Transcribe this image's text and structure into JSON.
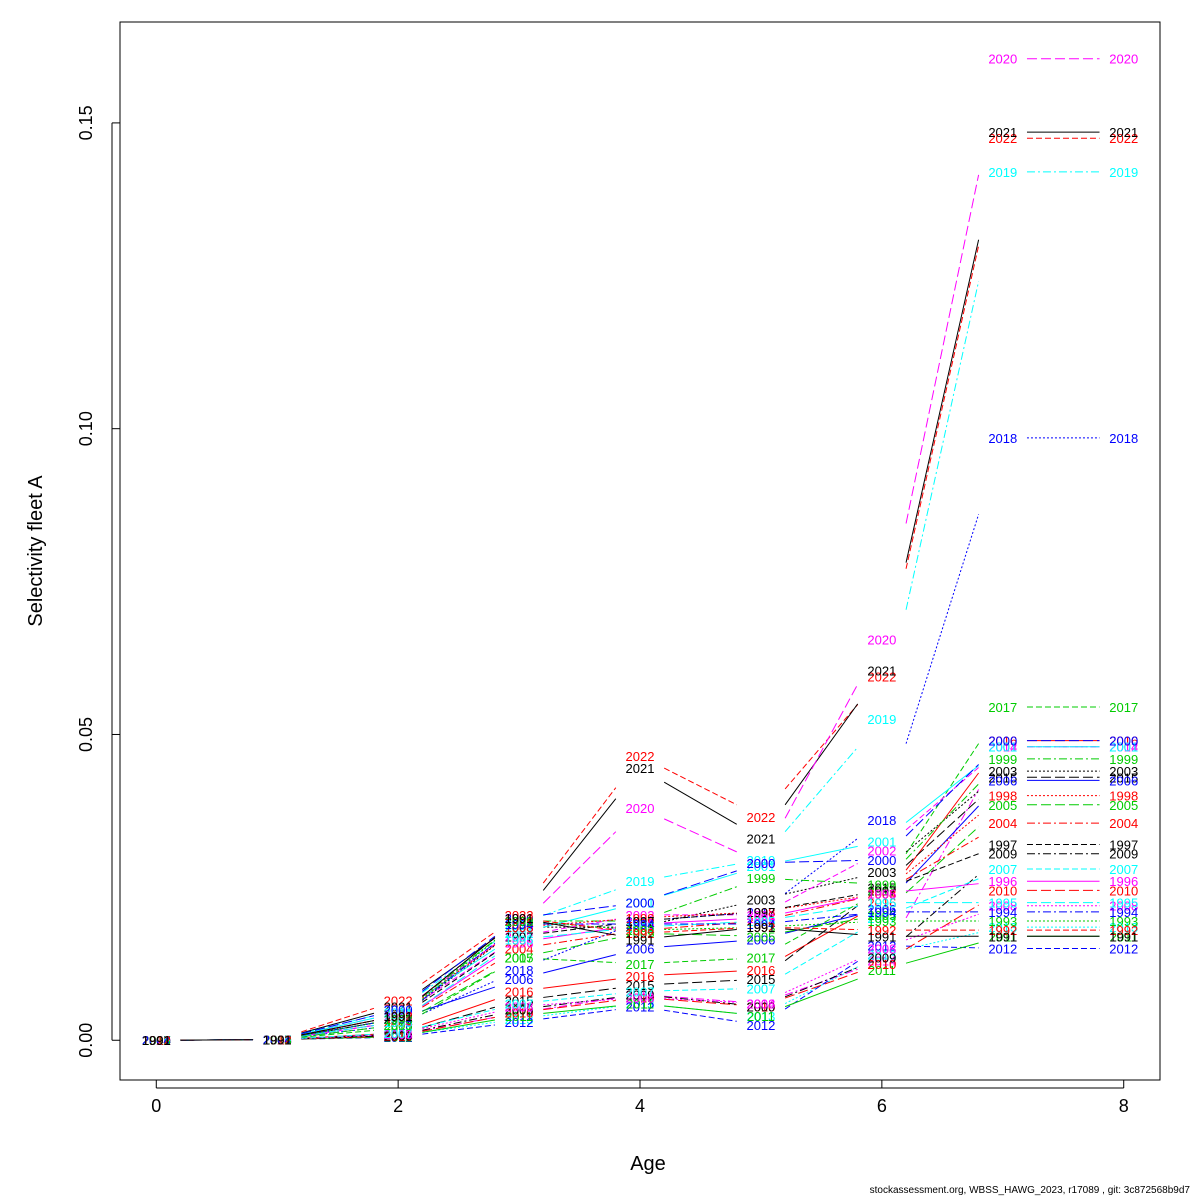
{
  "chart_data": {
    "type": "line",
    "xlabel": "Age",
    "ylabel": "Selectivity fleet A",
    "xlim": [
      -0.3,
      8.3
    ],
    "ylim": [
      -0.0065,
      0.1665
    ],
    "x_ticks": [
      "0",
      "2",
      "4",
      "6",
      "8"
    ],
    "y_ticks": [
      "0.00",
      "0.05",
      "0.10",
      "0.15"
    ],
    "grid": false,
    "legend": "none (series labelled inline at each point)",
    "x": [
      0,
      1,
      2,
      3,
      4,
      5,
      6,
      7,
      8
    ],
    "series": [
      {
        "name": "2022",
        "color": "#ff0000",
        "dash": "6,3",
        "values": [
          0,
          0.0001,
          0.0065,
          0.0205,
          0.0465,
          0.0365,
          0.0595,
          0.1475,
          0.1475
        ]
      },
      {
        "name": "2021",
        "color": "#000000",
        "dash": "",
        "values": [
          0,
          0.0001,
          0.0055,
          0.0195,
          0.0445,
          0.033,
          0.0605,
          0.1485,
          0.1485
        ]
      },
      {
        "name": "2020",
        "color": "#ff00ff",
        "dash": "10,4",
        "values": [
          0,
          0.0001,
          0.0045,
          0.0185,
          0.038,
          0.029,
          0.0655,
          0.1605,
          0.1605
        ]
      },
      {
        "name": "2019",
        "color": "#00ffff",
        "dash": "8,3,2,3",
        "values": [
          0,
          0.0001,
          0.005,
          0.019,
          0.026,
          0.0295,
          0.0525,
          0.142,
          0.142
        ]
      },
      {
        "name": "2018",
        "color": "#0000ff",
        "dash": "2,2",
        "values": [
          0,
          0.0001,
          0.0025,
          0.0115,
          0.0195,
          0.021,
          0.036,
          0.0985,
          0.0985
        ]
      },
      {
        "name": "2017",
        "color": "#00cc00",
        "dash": "6,3",
        "values": [
          0,
          0.0001,
          0.002,
          0.0135,
          0.0125,
          0.0135,
          0.0245,
          0.0545,
          0.0545
        ]
      },
      {
        "name": "2016",
        "color": "#ff0000",
        "dash": "",
        "values": [
          0,
          0.0001,
          0.0012,
          0.008,
          0.0105,
          0.0115,
          0.0225,
          0.049,
          0.049
        ]
      },
      {
        "name": "2015",
        "color": "#000000",
        "dash": "10,4",
        "values": [
          0,
          0.0001,
          0.001,
          0.0065,
          0.009,
          0.01,
          0.025,
          0.043,
          0.043
        ]
      },
      {
        "name": "2014",
        "color": "#ff00ff",
        "dash": "8,3,2,3",
        "values": [
          0,
          0.0001,
          0.0008,
          0.0045,
          0.0075,
          0.006,
          0.013,
          0.048,
          0.048
        ]
      },
      {
        "name": "2013",
        "color": "#00ffff",
        "dash": "2,2",
        "values": [
          0,
          0.0001,
          0.0007,
          0.0035,
          0.006,
          0.004,
          0.014,
          0.0185,
          0.0185
        ]
      },
      {
        "name": "2012",
        "color": "#0000ff",
        "dash": "6,3",
        "values": [
          0,
          0.0001,
          0.0005,
          0.003,
          0.0055,
          0.0025,
          0.0155,
          0.015,
          0.015
        ]
      },
      {
        "name": "2011",
        "color": "#00cc00",
        "dash": "",
        "values": [
          0,
          0.0001,
          0.0006,
          0.004,
          0.006,
          0.004,
          0.0115,
          0.017,
          0.017
        ]
      },
      {
        "name": "2010",
        "color": "#ff0000",
        "dash": "10,4",
        "values": [
          0,
          0.0001,
          0.0007,
          0.0045,
          0.007,
          0.0055,
          0.0125,
          0.0245,
          0.0245
        ]
      },
      {
        "name": "2009",
        "color": "#000000",
        "dash": "8,3,2,3",
        "values": [
          0,
          0.0001,
          0.0008,
          0.005,
          0.0075,
          0.0055,
          0.0135,
          0.0305,
          0.0305
        ]
      },
      {
        "name": "2008",
        "color": "#ff00ff",
        "dash": "2,2",
        "values": [
          0,
          0.0001,
          0.001,
          0.0055,
          0.007,
          0.006,
          0.015,
          0.022,
          0.022
        ]
      },
      {
        "name": "2007",
        "color": "#00ffff",
        "dash": "6,3",
        "values": [
          0,
          0.0001,
          0.0012,
          0.006,
          0.008,
          0.0085,
          0.02,
          0.028,
          0.028
        ]
      },
      {
        "name": "2006",
        "color": "#0000ff",
        "dash": "",
        "values": [
          0,
          0.0001,
          0.0035,
          0.01,
          0.015,
          0.0165,
          0.0215,
          0.0425,
          0.0425
        ]
      },
      {
        "name": "2005",
        "color": "#00cc00",
        "dash": "10,4",
        "values": [
          0,
          0.0001,
          0.0025,
          0.0135,
          0.0175,
          0.017,
          0.0205,
          0.0385,
          0.0385
        ]
      },
      {
        "name": "2004",
        "color": "#ff0000",
        "dash": "8,3,2,3",
        "values": [
          0,
          0.0001,
          0.003,
          0.015,
          0.018,
          0.0195,
          0.024,
          0.0355,
          0.0355
        ]
      },
      {
        "name": "2003",
        "color": "#000000",
        "dash": "2,2",
        "values": [
          0,
          0.0001,
          0.0035,
          0.0185,
          0.0185,
          0.023,
          0.0275,
          0.044,
          0.044
        ]
      },
      {
        "name": "2002",
        "color": "#ff00ff",
        "dash": "6,3",
        "values": [
          0,
          0.0001,
          0.004,
          0.017,
          0.0205,
          0.0205,
          0.031,
          0.048,
          0.048
        ]
      },
      {
        "name": "2001",
        "color": "#00ffff",
        "dash": "",
        "values": [
          0,
          0.0001,
          0.0045,
          0.0175,
          0.0225,
          0.0285,
          0.0325,
          0.048,
          0.048
        ]
      },
      {
        "name": "2000",
        "color": "#0000ff",
        "dash": "10,4",
        "values": [
          0,
          0.0001,
          0.005,
          0.02,
          0.0225,
          0.029,
          0.0295,
          0.049,
          0.049
        ]
      },
      {
        "name": "1999",
        "color": "#00cc00",
        "dash": "8,3,2,3",
        "values": [
          0,
          0.0001,
          0.004,
          0.0195,
          0.0195,
          0.0265,
          0.0255,
          0.046,
          0.046
        ]
      },
      {
        "name": "1998",
        "color": "#ff0000",
        "dash": "2,2",
        "values": [
          0,
          0.0001,
          0.004,
          0.0185,
          0.02,
          0.021,
          0.024,
          0.04,
          0.04
        ]
      },
      {
        "name": "1997",
        "color": "#000000",
        "dash": "6,3",
        "values": [
          0,
          0.0001,
          0.0035,
          0.017,
          0.0195,
          0.021,
          0.0245,
          0.032,
          0.032
        ]
      },
      {
        "name": "1996",
        "color": "#ff00ff",
        "dash": "",
        "values": [
          0,
          0.0001,
          0.003,
          0.016,
          0.019,
          0.02,
          0.024,
          0.026,
          0.026
        ]
      },
      {
        "name": "1995",
        "color": "#00ffff",
        "dash": "10,4",
        "values": [
          0,
          0.0001,
          0.003,
          0.0165,
          0.0185,
          0.0195,
          0.0225,
          0.0225,
          0.0225
        ]
      },
      {
        "name": "1994",
        "color": "#0000ff",
        "dash": "8,3,2,3",
        "values": [
          0,
          0.0001,
          0.0035,
          0.019,
          0.019,
          0.019,
          0.021,
          0.021,
          0.021
        ]
      },
      {
        "name": "1993",
        "color": "#00cc00",
        "dash": "2,2",
        "values": [
          0,
          0.0001,
          0.0035,
          0.0195,
          0.018,
          0.0185,
          0.0195,
          0.0195,
          0.0195
        ]
      },
      {
        "name": "1992",
        "color": "#ff0000",
        "dash": "6,3",
        "values": [
          0,
          0.0001,
          0.004,
          0.02,
          0.0175,
          0.0185,
          0.018,
          0.018,
          0.018
        ]
      },
      {
        "name": "1991",
        "color": "#000000",
        "dash": "",
        "values": [
          0,
          0.0001,
          0.004,
          0.02,
          0.0165,
          0.0185,
          0.017,
          0.017,
          0.017
        ]
      }
    ]
  },
  "footer": "stockassessment.org, WBSS_HAWG_2023, r17089 , git: 3c872568b9d7"
}
